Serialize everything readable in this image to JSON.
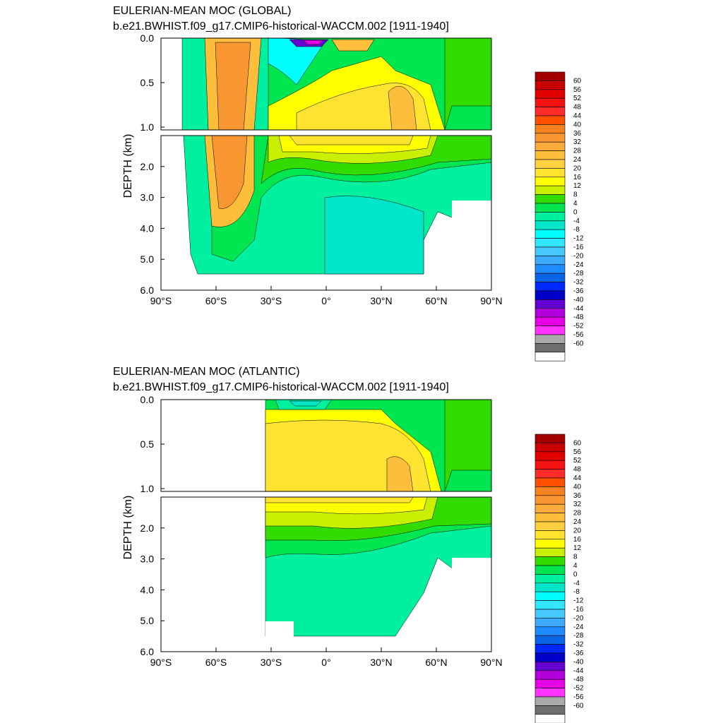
{
  "page": {
    "background": "#ffffff"
  },
  "legend_labels": [
    "60",
    "56",
    "52",
    "48",
    "44",
    "40",
    "36",
    "32",
    "28",
    "24",
    "20",
    "16",
    "12",
    "8",
    "4",
    "0",
    "-4",
    "-8",
    "-12",
    "-16",
    "-20",
    "-24",
    "-28",
    "-32",
    "-36",
    "-40",
    "-44",
    "-48",
    "-52",
    "-56",
    "-60"
  ],
  "colorbar_colors": [
    "#a50000",
    "#c80000",
    "#e00000",
    "#f41212",
    "#ff2a2a",
    "#ff5000",
    "#f5821e",
    "#f89632",
    "#fbaa3c",
    "#fdbe3c",
    "#ffd040",
    "#ffe330",
    "#ffff00",
    "#c8f000",
    "#32dc00",
    "#00e650",
    "#00f0a0",
    "#00e6c8",
    "#00ffff",
    "#32e6ff",
    "#46c8ff",
    "#3caaff",
    "#1e8cff",
    "#0a64e6",
    "#0028ff",
    "#0000c8",
    "#6400d2",
    "#b400dc",
    "#e600e6",
    "#ff32ff",
    "#aaaaaa",
    "#6e6e6e",
    "#ffffff"
  ],
  "palette": {
    "green": "#32dc00",
    "lightgreen": "#00e650",
    "cyan": "#00f0a0",
    "lime": "#c8f000",
    "yellow": "#ffff00",
    "gold": "#ffe330",
    "lightorange": "#fdbe3c",
    "orange": "#f89632",
    "darkorange": "#f5821e",
    "blue": "#0000c8",
    "purple": "#6400d2",
    "magenta": "#e600e6",
    "ltcyan": "#00e6c8",
    "aqua": "#00ffff"
  },
  "chart_data": [
    {
      "type": "heatmap",
      "title": "EULERIAN-MEAN MOC (GLOBAL)",
      "subtitle": "b.e21.BWHIST.f09_g17.CMIP6-historical-WACCM.002 [1911-1940]",
      "ylabel": "DEPTH (km)",
      "xlabel": "",
      "x_ticks": [
        "90°S",
        "60°S",
        "30°S",
        "0°",
        "30°N",
        "60°N",
        "90°N"
      ],
      "y_ticks_upper": [
        "0.0",
        "0.5",
        "1.0"
      ],
      "y_ticks_lower": [
        "2.0",
        "3.0",
        "4.0",
        "5.0",
        "6.0"
      ],
      "xlim": [
        -90,
        90
      ],
      "ylim": [
        0,
        6
      ],
      "upper_panel_depth_range": [
        0,
        1
      ],
      "contour_interval": 4,
      "colorbar_range": [
        -60,
        60
      ]
    },
    {
      "type": "heatmap",
      "title": "EULERIAN-MEAN MOC (ATLANTIC)",
      "subtitle": "b.e21.BWHIST.f09_g17.CMIP6-historical-WACCM.002 [1911-1940]",
      "ylabel": "DEPTH (km)",
      "xlabel": "",
      "x_ticks": [
        "90°S",
        "60°S",
        "30°S",
        "0°",
        "30°N",
        "60°N",
        "90°N"
      ],
      "y_ticks_upper": [
        "0.0",
        "0.5",
        "1.0"
      ],
      "y_ticks_lower": [
        "2.0",
        "3.0",
        "4.0",
        "5.0",
        "6.0"
      ],
      "xlim": [
        -90,
        90
      ],
      "ylim": [
        0,
        6
      ],
      "upper_panel_depth_range": [
        0,
        1
      ],
      "contour_interval": 4,
      "colorbar_range": [
        -60,
        60
      ]
    }
  ]
}
